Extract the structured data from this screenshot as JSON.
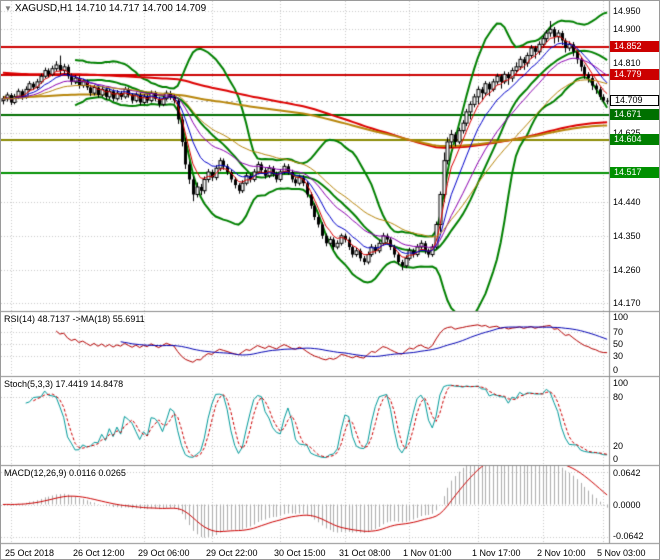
{
  "header": {
    "symbol": "XAGUSD,H1",
    "ohlc": "14.710 14.717 14.700 14.709"
  },
  "chart_data": {
    "type": "candlestick",
    "symbol": "XAGUSD",
    "timeframe": "H1",
    "price_range": {
      "top": 14.97,
      "bottom": 14.155
    },
    "price_axis_ticks": [
      "14.950",
      "14.900",
      "14.810",
      "14.625",
      "14.440",
      "14.350",
      "14.260",
      "14.170"
    ],
    "x_labels": [
      {
        "t": "25 Oct 2018",
        "i": 2
      },
      {
        "t": "26 Oct 12:00",
        "i": 20
      },
      {
        "t": "29 Oct 06:00",
        "i": 37
      },
      {
        "t": "29 Oct 22:00",
        "i": 55
      },
      {
        "t": "30 Oct 15:00",
        "i": 73
      },
      {
        "t": "31 Oct 08:00",
        "i": 90
      },
      {
        "t": "1 Nov 01:00",
        "i": 107
      },
      {
        "t": "1 Nov 17:00",
        "i": 125
      },
      {
        "t": "2 Nov 10:00",
        "i": 142
      },
      {
        "t": "5 Nov 03:00",
        "i": 158
      }
    ],
    "levels": [
      {
        "label": "14.852",
        "price": 14.852,
        "line": "#cc0000",
        "badge": "#cc0000",
        "w": 2
      },
      {
        "label": "14.779",
        "price": 14.779,
        "line": "#cc0000",
        "badge": "#cc0000",
        "w": 2
      },
      {
        "label": "14.671",
        "price": 14.671,
        "line": "#006e00",
        "badge": "#007000",
        "w": 2
      },
      {
        "label": "14.604",
        "price": 14.604,
        "line": "#8a8a00",
        "badge": "#008000",
        "w": 2
      },
      {
        "label": "14.517",
        "price": 14.517,
        "line": "#009000",
        "badge": "#009000",
        "w": 2
      }
    ],
    "current_price": {
      "label": "14.709",
      "price": 14.709
    },
    "overlays": {
      "bollinger": {
        "period": 20,
        "deviation": 2,
        "color": "#008000"
      },
      "fast_mas": [
        {
          "period": 5,
          "color": "#dd0000"
        },
        {
          "period": 10,
          "color": "#0000cc"
        },
        {
          "period": 20,
          "color": "#8b00b0"
        },
        {
          "period": 34,
          "color": "#b8860b"
        }
      ],
      "slow_mas": [
        {
          "period": 200,
          "seed": 14.785,
          "color": "#dd0000"
        },
        {
          "period": 250,
          "seed": 14.72,
          "color": "#b8860b"
        }
      ]
    },
    "panels": {
      "rsi": {
        "label": "RSI(14) 48.7137 ->MA(18) 55.6911",
        "period": 14,
        "ma_period": 18,
        "ticks": [
          "100",
          "70",
          "50",
          "30",
          "0"
        ],
        "grid_levels": [
          70,
          50,
          30
        ],
        "colors": {
          "rsi": "#b40000",
          "ma": "#0000b4"
        }
      },
      "stoch": {
        "label": "Stoch(5,3,3) 17.4419 14.8478",
        "ticks": [
          "100",
          "80",
          "20",
          "0"
        ],
        "grid_levels": [
          80,
          20
        ],
        "colors": {
          "k": "#009a9a",
          "d": "#cc0000"
        }
      },
      "macd": {
        "label": "MACD(12,26,9) 0.0116 0.0265",
        "range": 0.075,
        "ticks": [
          "0.0642",
          "0.0000",
          "-0.0642"
        ],
        "colors": {
          "hist": "#adadad",
          "signal": "#cc0000"
        }
      }
    },
    "grid_color": "#c9c9c9",
    "candles": [
      [
        14.71,
        14.722,
        14.7,
        14.715
      ],
      [
        14.715,
        14.732,
        14.708,
        14.725
      ],
      [
        14.725,
        14.73,
        14.698,
        14.705
      ],
      [
        14.705,
        14.728,
        14.7,
        14.72
      ],
      [
        14.72,
        14.742,
        14.714,
        14.735
      ],
      [
        14.735,
        14.74,
        14.712,
        14.72
      ],
      [
        14.72,
        14.748,
        14.715,
        14.74
      ],
      [
        14.74,
        14.762,
        14.734,
        14.755
      ],
      [
        14.755,
        14.76,
        14.738,
        14.745
      ],
      [
        14.745,
        14.768,
        14.74,
        14.76
      ],
      [
        14.76,
        14.782,
        14.755,
        14.775
      ],
      [
        14.775,
        14.798,
        14.77,
        14.79
      ],
      [
        14.79,
        14.796,
        14.772,
        14.78
      ],
      [
        14.78,
        14.803,
        14.775,
        14.795
      ],
      [
        14.795,
        14.815,
        14.788,
        14.805
      ],
      [
        14.805,
        14.83,
        14.78,
        14.79
      ],
      [
        14.79,
        14.808,
        14.782,
        14.8
      ],
      [
        14.8,
        14.806,
        14.768,
        14.775
      ],
      [
        14.775,
        14.782,
        14.752,
        14.76
      ],
      [
        14.76,
        14.778,
        14.754,
        14.77
      ],
      [
        14.77,
        14.776,
        14.742,
        14.75
      ],
      [
        14.75,
        14.768,
        14.744,
        14.76
      ],
      [
        14.76,
        14.766,
        14.738,
        14.745
      ],
      [
        14.745,
        14.752,
        14.722,
        14.73
      ],
      [
        14.73,
        14.752,
        14.724,
        14.745
      ],
      [
        14.745,
        14.75,
        14.718,
        14.725
      ],
      [
        14.725,
        14.748,
        14.72,
        14.74
      ],
      [
        14.74,
        14.746,
        14.712,
        14.72
      ],
      [
        14.72,
        14.742,
        14.714,
        14.735
      ],
      [
        14.735,
        14.74,
        14.708,
        14.715
      ],
      [
        14.715,
        14.738,
        14.71,
        14.73
      ],
      [
        14.73,
        14.736,
        14.712,
        14.72
      ],
      [
        14.72,
        14.747,
        14.715,
        14.74
      ],
      [
        14.74,
        14.745,
        14.718,
        14.725
      ],
      [
        14.725,
        14.73,
        14.702,
        14.71
      ],
      [
        14.71,
        14.732,
        14.705,
        14.725
      ],
      [
        14.725,
        14.73,
        14.698,
        14.705
      ],
      [
        14.705,
        14.727,
        14.7,
        14.72
      ],
      [
        14.72,
        14.726,
        14.703,
        14.71
      ],
      [
        14.71,
        14.737,
        14.705,
        14.73
      ],
      [
        14.73,
        14.736,
        14.708,
        14.715
      ],
      [
        14.715,
        14.72,
        14.692,
        14.7
      ],
      [
        14.7,
        14.722,
        14.695,
        14.715
      ],
      [
        14.715,
        14.737,
        14.71,
        14.73
      ],
      [
        14.73,
        14.736,
        14.712,
        14.72
      ],
      [
        14.72,
        14.726,
        14.702,
        14.71
      ],
      [
        14.71,
        14.715,
        14.648,
        14.66
      ],
      [
        14.66,
        14.668,
        14.588,
        14.6
      ],
      [
        14.6,
        14.61,
        14.528,
        14.54
      ],
      [
        14.54,
        14.548,
        14.488,
        14.5
      ],
      [
        14.5,
        14.508,
        14.442,
        14.46
      ],
      [
        14.46,
        14.492,
        14.452,
        14.48
      ],
      [
        14.48,
        14.488,
        14.458,
        14.47
      ],
      [
        14.47,
        14.508,
        14.462,
        14.5
      ],
      [
        14.5,
        14.528,
        14.492,
        14.52
      ],
      [
        14.52,
        14.526,
        14.496,
        14.505
      ],
      [
        14.505,
        14.538,
        14.498,
        14.53
      ],
      [
        14.53,
        14.558,
        14.522,
        14.55
      ],
      [
        14.55,
        14.556,
        14.526,
        14.535
      ],
      [
        14.535,
        14.541,
        14.512,
        14.52
      ],
      [
        14.52,
        14.526,
        14.492,
        14.5
      ],
      [
        14.5,
        14.506,
        14.476,
        14.485
      ],
      [
        14.485,
        14.49,
        14.462,
        14.47
      ],
      [
        14.47,
        14.498,
        14.464,
        14.49
      ],
      [
        14.49,
        14.518,
        14.484,
        14.51
      ],
      [
        14.51,
        14.516,
        14.492,
        14.5
      ],
      [
        14.5,
        14.528,
        14.494,
        14.52
      ],
      [
        14.52,
        14.548,
        14.514,
        14.54
      ],
      [
        14.54,
        14.546,
        14.517,
        14.525
      ],
      [
        14.525,
        14.531,
        14.502,
        14.51
      ],
      [
        14.51,
        14.538,
        14.504,
        14.53
      ],
      [
        14.53,
        14.536,
        14.507,
        14.515
      ],
      [
        14.515,
        14.521,
        14.492,
        14.5
      ],
      [
        14.5,
        14.528,
        14.494,
        14.52
      ],
      [
        14.52,
        14.543,
        14.514,
        14.535
      ],
      [
        14.535,
        14.541,
        14.512,
        14.52
      ],
      [
        14.52,
        14.526,
        14.492,
        14.5
      ],
      [
        14.5,
        14.506,
        14.482,
        14.49
      ],
      [
        14.49,
        14.513,
        14.484,
        14.505
      ],
      [
        14.505,
        14.511,
        14.482,
        14.49
      ],
      [
        14.49,
        14.496,
        14.452,
        14.46
      ],
      [
        14.46,
        14.466,
        14.422,
        14.43
      ],
      [
        14.43,
        14.436,
        14.392,
        14.4
      ],
      [
        14.4,
        14.406,
        14.372,
        14.38
      ],
      [
        14.38,
        14.386,
        14.342,
        14.35
      ],
      [
        14.35,
        14.356,
        14.322,
        14.33
      ],
      [
        14.33,
        14.348,
        14.324,
        14.34
      ],
      [
        14.34,
        14.346,
        14.312,
        14.32
      ],
      [
        14.32,
        14.338,
        14.314,
        14.33
      ],
      [
        14.33,
        14.356,
        14.324,
        14.35
      ],
      [
        14.35,
        14.356,
        14.332,
        14.34
      ],
      [
        14.34,
        14.346,
        14.312,
        14.32
      ],
      [
        14.32,
        14.326,
        14.292,
        14.3
      ],
      [
        14.3,
        14.318,
        14.294,
        14.31
      ],
      [
        14.31,
        14.316,
        14.282,
        14.29
      ],
      [
        14.29,
        14.296,
        14.272,
        14.28
      ],
      [
        14.28,
        14.308,
        14.274,
        14.3
      ],
      [
        14.3,
        14.328,
        14.294,
        14.32
      ],
      [
        14.32,
        14.326,
        14.302,
        14.31
      ],
      [
        14.31,
        14.338,
        14.304,
        14.33
      ],
      [
        14.33,
        14.358,
        14.324,
        14.35
      ],
      [
        14.35,
        14.356,
        14.332,
        14.34
      ],
      [
        14.34,
        14.346,
        14.312,
        14.32
      ],
      [
        14.32,
        14.326,
        14.292,
        14.3
      ],
      [
        14.3,
        14.306,
        14.272,
        14.28
      ],
      [
        14.28,
        14.286,
        14.258,
        14.27
      ],
      [
        14.27,
        14.298,
        14.264,
        14.29
      ],
      [
        14.29,
        14.318,
        14.284,
        14.31
      ],
      [
        14.31,
        14.316,
        14.292,
        14.3
      ],
      [
        14.3,
        14.328,
        14.294,
        14.32
      ],
      [
        14.32,
        14.338,
        14.314,
        14.33
      ],
      [
        14.33,
        14.336,
        14.302,
        14.31
      ],
      [
        14.31,
        14.316,
        14.292,
        14.3
      ],
      [
        14.3,
        14.328,
        14.294,
        14.32
      ],
      [
        14.32,
        14.388,
        14.314,
        14.38
      ],
      [
        14.38,
        14.468,
        14.36,
        14.46
      ],
      [
        14.46,
        14.572,
        14.44,
        14.55
      ],
      [
        14.55,
        14.612,
        14.54,
        14.6
      ],
      [
        14.6,
        14.632,
        14.584,
        14.62
      ],
      [
        14.62,
        14.626,
        14.588,
        14.6
      ],
      [
        14.6,
        14.638,
        14.594,
        14.63
      ],
      [
        14.63,
        14.658,
        14.622,
        14.65
      ],
      [
        14.65,
        14.688,
        14.642,
        14.68
      ],
      [
        14.68,
        14.708,
        14.66,
        14.7
      ],
      [
        14.7,
        14.728,
        14.692,
        14.72
      ],
      [
        14.72,
        14.748,
        14.7,
        14.74
      ],
      [
        14.74,
        14.746,
        14.712,
        14.73
      ],
      [
        14.73,
        14.762,
        14.722,
        14.755
      ],
      [
        14.755,
        14.76,
        14.722,
        14.74
      ],
      [
        14.74,
        14.768,
        14.734,
        14.76
      ],
      [
        14.76,
        14.782,
        14.752,
        14.775
      ],
      [
        14.775,
        14.78,
        14.742,
        14.76
      ],
      [
        14.76,
        14.788,
        14.754,
        14.78
      ],
      [
        14.78,
        14.786,
        14.752,
        14.77
      ],
      [
        14.77,
        14.798,
        14.76,
        14.79
      ],
      [
        14.79,
        14.812,
        14.782,
        14.8
      ],
      [
        14.8,
        14.828,
        14.792,
        14.82
      ],
      [
        14.82,
        14.826,
        14.792,
        14.81
      ],
      [
        14.81,
        14.838,
        14.8,
        14.83
      ],
      [
        14.83,
        14.858,
        14.822,
        14.85
      ],
      [
        14.85,
        14.856,
        14.822,
        14.84
      ],
      [
        14.84,
        14.868,
        14.832,
        14.86
      ],
      [
        14.86,
        14.883,
        14.85,
        14.875
      ],
      [
        14.875,
        14.898,
        14.866,
        14.89
      ],
      [
        14.89,
        14.922,
        14.88,
        14.9
      ],
      [
        14.9,
        14.906,
        14.862,
        14.88
      ],
      [
        14.88,
        14.898,
        14.866,
        14.89
      ],
      [
        14.89,
        14.896,
        14.858,
        14.87
      ],
      [
        14.87,
        14.876,
        14.838,
        14.85
      ],
      [
        14.85,
        14.868,
        14.842,
        14.86
      ],
      [
        14.86,
        14.866,
        14.828,
        14.84
      ],
      [
        14.84,
        14.846,
        14.808,
        14.82
      ],
      [
        14.82,
        14.826,
        14.788,
        14.8
      ],
      [
        14.8,
        14.806,
        14.768,
        14.78
      ],
      [
        14.78,
        14.786,
        14.758,
        14.77
      ],
      [
        14.77,
        14.776,
        14.738,
        14.75
      ],
      [
        14.75,
        14.756,
        14.728,
        14.74
      ],
      [
        14.74,
        14.746,
        14.712,
        14.72
      ],
      [
        14.72,
        14.727,
        14.705,
        14.71
      ],
      [
        14.71,
        14.717,
        14.7,
        14.709
      ]
    ]
  }
}
